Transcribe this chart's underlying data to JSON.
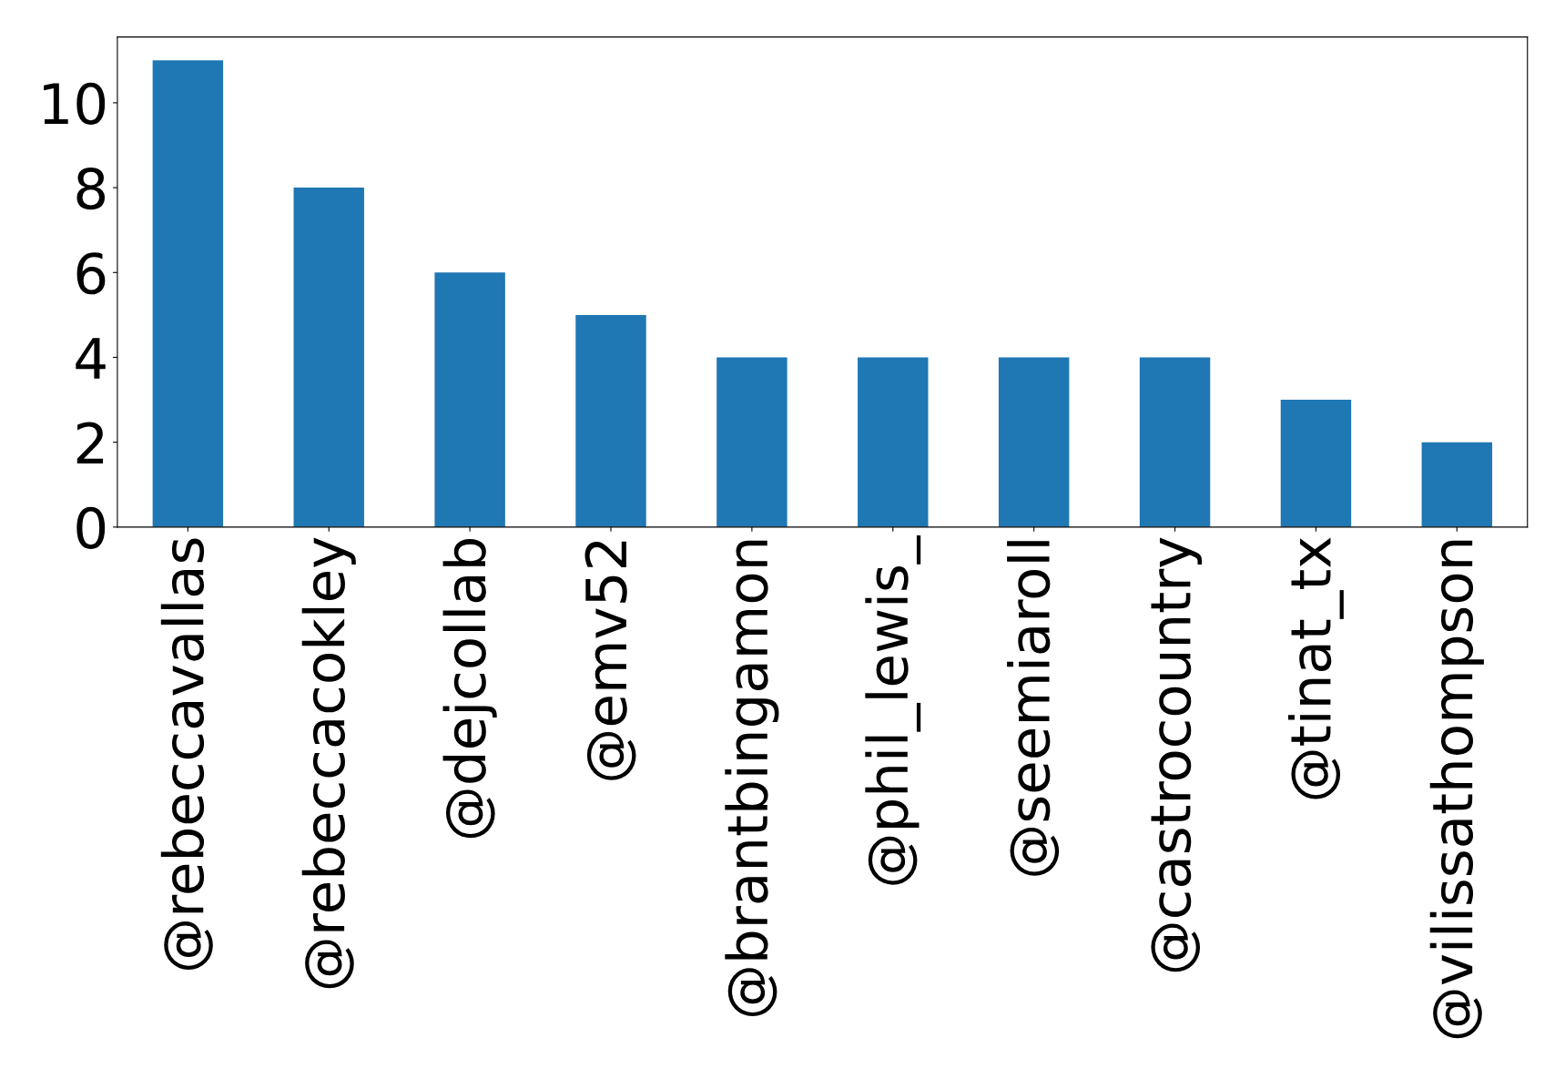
{
  "chart_data": {
    "type": "bar",
    "categories": [
      "@rebeccavallas",
      "@rebeccacokley",
      "@dejcollab",
      "@emv52",
      "@brantbingamon",
      "@phil_lewis_",
      "@seemiaroll",
      "@castrocountry",
      "@tinat_tx",
      "@vilissathompson"
    ],
    "values": [
      11,
      8,
      6,
      5,
      4,
      4,
      4,
      4,
      3,
      2
    ],
    "color": "#1f77b4",
    "ylim": [
      0,
      11.55
    ],
    "yticks": [
      0,
      2,
      4,
      6,
      8,
      10
    ],
    "grid": false,
    "legend": false
  }
}
